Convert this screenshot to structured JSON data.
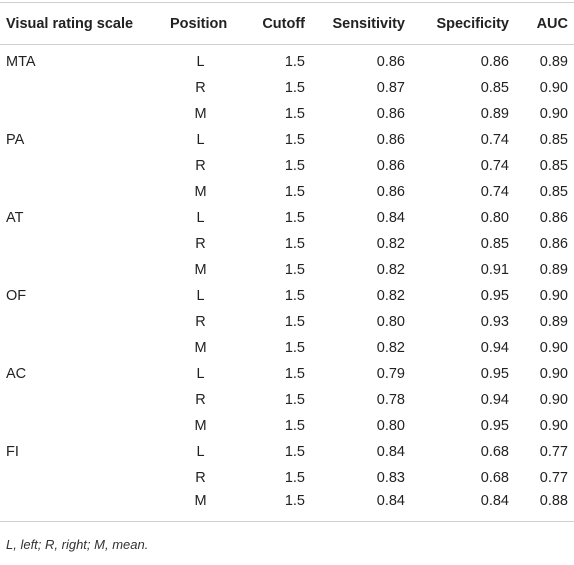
{
  "table": {
    "headers": [
      "Visual rating scale",
      "Position",
      "Cutoff",
      "Sensitivity",
      "Specificity",
      "AUC"
    ],
    "rows": [
      {
        "scale": "MTA",
        "position": "L",
        "cutoff": "1.5",
        "sensitivity": "0.86",
        "specificity": "0.86",
        "auc": "0.89"
      },
      {
        "scale": "",
        "position": "R",
        "cutoff": "1.5",
        "sensitivity": "0.87",
        "specificity": "0.85",
        "auc": "0.90"
      },
      {
        "scale": "",
        "position": "M",
        "cutoff": "1.5",
        "sensitivity": "0.86",
        "specificity": "0.89",
        "auc": "0.90"
      },
      {
        "scale": "PA",
        "position": "L",
        "cutoff": "1.5",
        "sensitivity": "0.86",
        "specificity": "0.74",
        "auc": "0.85"
      },
      {
        "scale": "",
        "position": "R",
        "cutoff": "1.5",
        "sensitivity": "0.86",
        "specificity": "0.74",
        "auc": "0.85"
      },
      {
        "scale": "",
        "position": "M",
        "cutoff": "1.5",
        "sensitivity": "0.86",
        "specificity": "0.74",
        "auc": "0.85"
      },
      {
        "scale": "AT",
        "position": "L",
        "cutoff": "1.5",
        "sensitivity": "0.84",
        "specificity": "0.80",
        "auc": "0.86"
      },
      {
        "scale": "",
        "position": "R",
        "cutoff": "1.5",
        "sensitivity": "0.82",
        "specificity": "0.85",
        "auc": "0.86"
      },
      {
        "scale": "",
        "position": "M",
        "cutoff": "1.5",
        "sensitivity": "0.82",
        "specificity": "0.91",
        "auc": "0.89"
      },
      {
        "scale": "OF",
        "position": "L",
        "cutoff": "1.5",
        "sensitivity": "0.82",
        "specificity": "0.95",
        "auc": "0.90"
      },
      {
        "scale": "",
        "position": "R",
        "cutoff": "1.5",
        "sensitivity": "0.80",
        "specificity": "0.93",
        "auc": "0.89"
      },
      {
        "scale": "",
        "position": "M",
        "cutoff": "1.5",
        "sensitivity": "0.82",
        "specificity": "0.94",
        "auc": "0.90"
      },
      {
        "scale": "AC",
        "position": "L",
        "cutoff": "1.5",
        "sensitivity": "0.79",
        "specificity": "0.95",
        "auc": "0.90"
      },
      {
        "scale": "",
        "position": "R",
        "cutoff": "1.5",
        "sensitivity": "0.78",
        "specificity": "0.94",
        "auc": "0.90"
      },
      {
        "scale": "",
        "position": "M",
        "cutoff": "1.5",
        "sensitivity": "0.80",
        "specificity": "0.95",
        "auc": "0.90"
      },
      {
        "scale": "FI",
        "position": "L",
        "cutoff": "1.5",
        "sensitivity": "0.84",
        "specificity": "0.68",
        "auc": "0.77"
      },
      {
        "scale": "",
        "position": "R",
        "cutoff": "1.5",
        "sensitivity": "0.83",
        "specificity": "0.68",
        "auc": "0.77"
      },
      {
        "scale": "",
        "position": "M",
        "cutoff": "1.5",
        "sensitivity": "0.84",
        "specificity": "0.84",
        "auc": "0.88"
      }
    ]
  },
  "footnote": "L, left; R, right; M, mean.",
  "colors": {
    "text": "#222222",
    "rule": "#cfcfcf"
  }
}
